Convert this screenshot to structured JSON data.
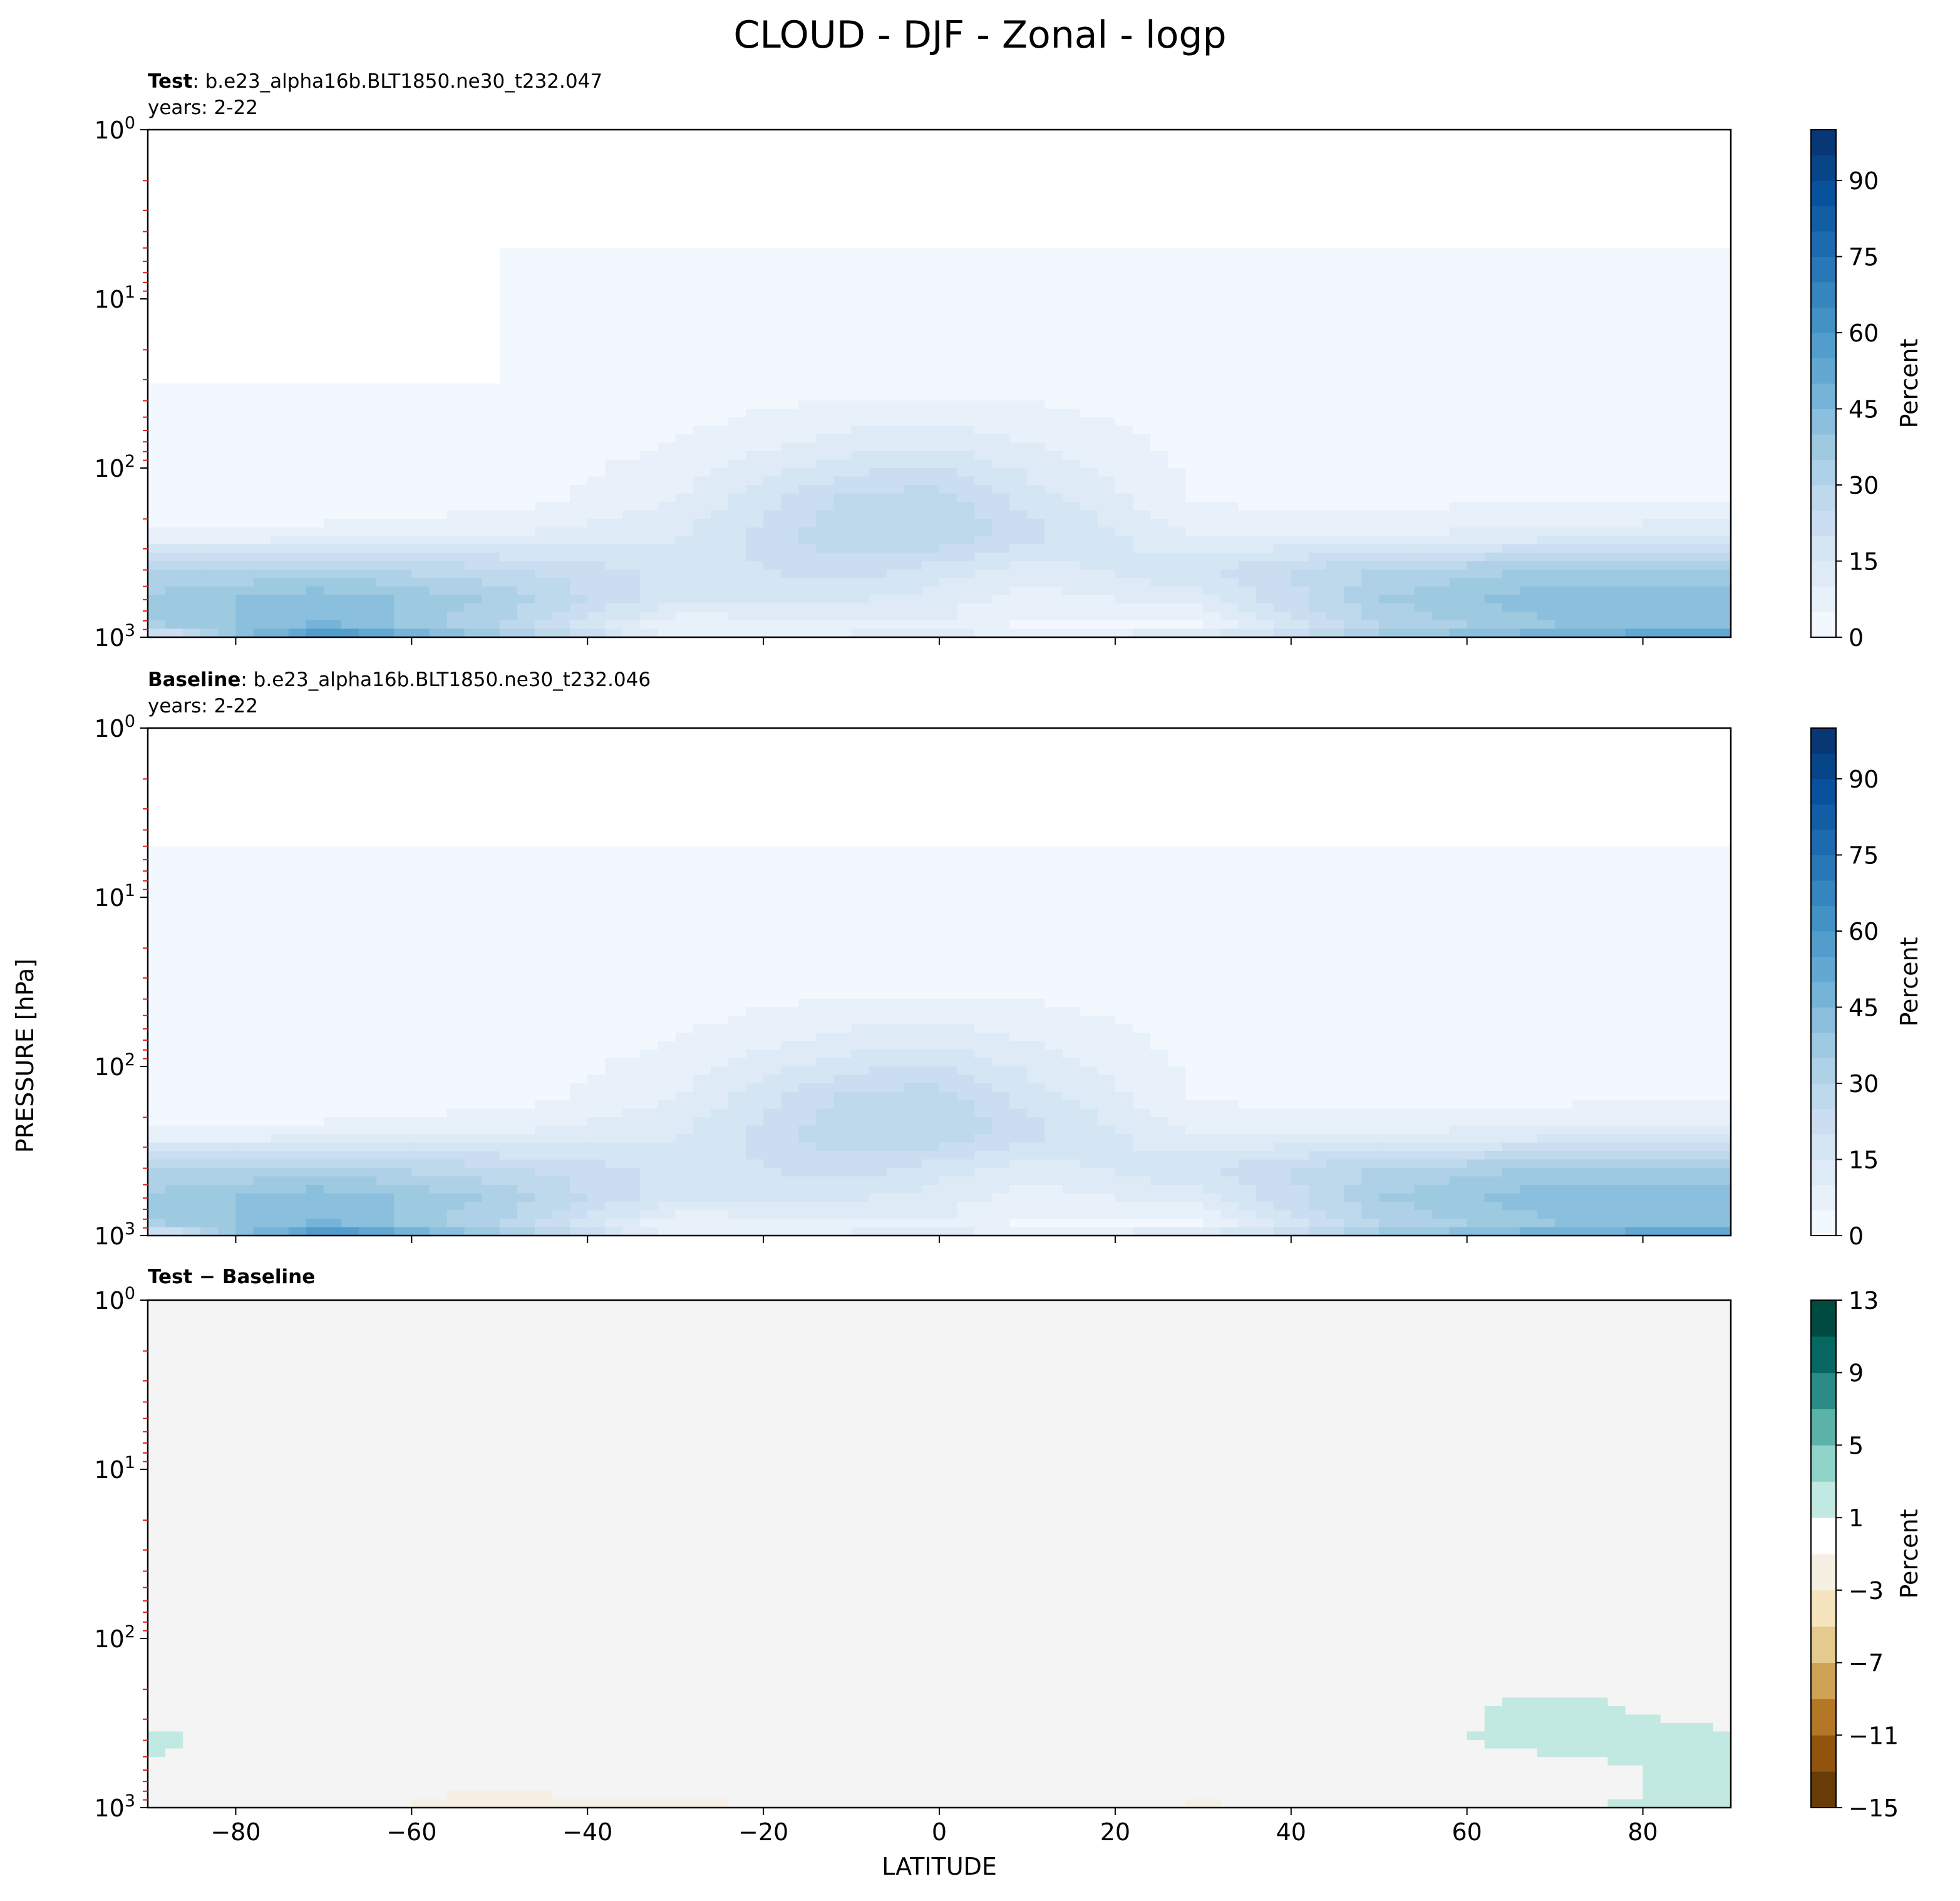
{
  "figure": {
    "title": "CLOUD - DJF - Zonal - logp",
    "ylabel": "PRESSURE [hPa]",
    "xlabel": "LATITUDE"
  },
  "chart_data": [
    {
      "type": "heatmap",
      "panel": "Test",
      "title_bold": "Test",
      "title_rest": ": b.e23_alpha16b.BLT1850.ne30_t232.047",
      "subtitle": "years: 2-22",
      "x_ticks": [
        -80,
        -60,
        -40,
        -20,
        0,
        20,
        40,
        60,
        80
      ],
      "xlim": [
        -90,
        90
      ],
      "y_scale": "log",
      "y_inverted": true,
      "ylim": [
        1000,
        1
      ],
      "y_tick_labels": [
        "10^0",
        "10^1",
        "10^2",
        "10^3"
      ],
      "colorbar": {
        "label": "Percent",
        "ticks": [
          0,
          15,
          30,
          45,
          60,
          75,
          90
        ],
        "range": [
          0,
          100
        ],
        "colormap": "Blues"
      },
      "fields": {
        "x": [
          -90,
          -70,
          -50,
          -30,
          -10,
          0,
          10,
          30,
          50,
          70,
          90
        ],
        "y": [
          5,
          30,
          70,
          150,
          250,
          400,
          600,
          850,
          950
        ],
        "z": [
          [
            0,
            0,
            0,
            0,
            0,
            0,
            0,
            0,
            0,
            0,
            0
          ],
          [
            0,
            0,
            0,
            1,
            2,
            2,
            2,
            1,
            1,
            2,
            2
          ],
          [
            1,
            1,
            1,
            5,
            12,
            13,
            10,
            3,
            2,
            3,
            3
          ],
          [
            1,
            1,
            2,
            10,
            26,
            28,
            18,
            4,
            3,
            4,
            4
          ],
          [
            6,
            7,
            10,
            14,
            30,
            30,
            22,
            9,
            10,
            12,
            14
          ],
          [
            30,
            32,
            26,
            18,
            22,
            18,
            12,
            20,
            30,
            36,
            35
          ],
          [
            36,
            44,
            34,
            16,
            16,
            12,
            8,
            12,
            35,
            44,
            44
          ],
          [
            34,
            46,
            30,
            6,
            8,
            10,
            4,
            4,
            30,
            40,
            42
          ],
          [
            18,
            60,
            36,
            8,
            10,
            12,
            8,
            12,
            36,
            48,
            54
          ]
        ]
      }
    },
    {
      "type": "heatmap",
      "panel": "Baseline",
      "title_bold": "Baseline",
      "title_rest": ": b.e23_alpha16b.BLT1850.ne30_t232.046",
      "subtitle": "years: 2-22",
      "x_ticks": [
        -80,
        -60,
        -40,
        -20,
        0,
        20,
        40,
        60,
        80
      ],
      "xlim": [
        -90,
        90
      ],
      "y_scale": "log",
      "y_inverted": true,
      "ylim": [
        1000,
        1
      ],
      "y_tick_labels": [
        "10^0",
        "10^1",
        "10^2",
        "10^3"
      ],
      "colorbar": {
        "label": "Percent",
        "ticks": [
          0,
          15,
          30,
          45,
          60,
          75,
          90
        ],
        "range": [
          0,
          100
        ],
        "colormap": "Blues"
      },
      "fields": {
        "x": [
          -90,
          -70,
          -50,
          -30,
          -10,
          0,
          10,
          30,
          50,
          70,
          90
        ],
        "y": [
          5,
          30,
          70,
          150,
          250,
          400,
          600,
          850,
          950
        ],
        "z": [
          [
            0,
            0,
            0,
            0,
            0,
            0,
            0,
            0,
            0,
            0,
            0
          ],
          [
            1,
            1,
            1,
            1,
            2,
            2,
            2,
            1,
            1,
            1,
            1
          ],
          [
            1,
            1,
            1,
            5,
            12,
            13,
            10,
            3,
            2,
            2,
            2
          ],
          [
            1,
            1,
            2,
            10,
            26,
            28,
            18,
            4,
            3,
            3,
            3
          ],
          [
            6,
            7,
            10,
            14,
            30,
            30,
            22,
            9,
            10,
            12,
            13
          ],
          [
            30,
            32,
            26,
            18,
            22,
            18,
            12,
            20,
            30,
            36,
            35
          ],
          [
            36,
            44,
            34,
            16,
            16,
            12,
            8,
            12,
            35,
            44,
            44
          ],
          [
            34,
            46,
            30,
            6,
            8,
            10,
            4,
            4,
            30,
            40,
            42
          ],
          [
            18,
            60,
            36,
            8,
            10,
            12,
            8,
            12,
            36,
            48,
            54
          ]
        ]
      }
    },
    {
      "type": "heatmap",
      "panel": "Difference",
      "title_bold": "Test − Baseline",
      "x_ticks": [
        -80,
        -60,
        -40,
        -20,
        0,
        20,
        40,
        60,
        80
      ],
      "x_tick_labels": [
        "−80",
        "−60",
        "−40",
        "−20",
        "0",
        "20",
        "40",
        "60",
        "80"
      ],
      "xlim": [
        -90,
        90
      ],
      "y_scale": "log",
      "y_inverted": true,
      "ylim": [
        1000,
        1
      ],
      "y_tick_labels": [
        "10^0",
        "10^1",
        "10^2",
        "10^3"
      ],
      "colorbar": {
        "label": "Percent",
        "ticks": [
          13,
          9,
          5,
          1,
          -3,
          -7,
          -11,
          -15
        ],
        "tick_labels": [
          "13",
          "9",
          "5",
          "1",
          "−3",
          "−7",
          "−11",
          "−15"
        ],
        "range": [
          -15,
          13
        ],
        "colormap": "BrBG"
      },
      "fields": {
        "x": [
          -90,
          -70,
          -50,
          -30,
          -10,
          0,
          10,
          30,
          50,
          70,
          90
        ],
        "y": [
          5,
          30,
          70,
          150,
          250,
          400,
          600,
          850,
          950
        ],
        "z": [
          [
            0,
            0,
            0,
            0,
            0,
            0,
            0,
            0,
            0,
            0,
            0
          ],
          [
            0,
            0,
            0,
            0,
            0,
            0,
            0,
            0,
            0,
            0,
            0
          ],
          [
            0,
            0,
            0,
            0,
            0,
            0,
            0,
            0,
            0,
            0,
            0
          ],
          [
            0,
            0,
            0,
            0,
            0,
            0,
            0,
            0,
            0,
            0,
            0
          ],
          [
            0,
            0,
            0,
            0,
            0,
            0,
            0,
            0,
            0,
            1.5,
            0
          ],
          [
            1.5,
            0,
            0,
            0,
            0,
            0,
            0,
            0,
            0,
            2,
            1.5
          ],
          [
            0.5,
            -1,
            0,
            0,
            0,
            0,
            0,
            0,
            0,
            0,
            2
          ],
          [
            0,
            0,
            -1.5,
            0,
            0,
            0,
            0,
            0,
            0,
            0,
            2
          ],
          [
            0,
            0,
            -2,
            -1.5,
            0,
            0,
            0,
            -1.2,
            0,
            0,
            3
          ]
        ]
      }
    }
  ]
}
